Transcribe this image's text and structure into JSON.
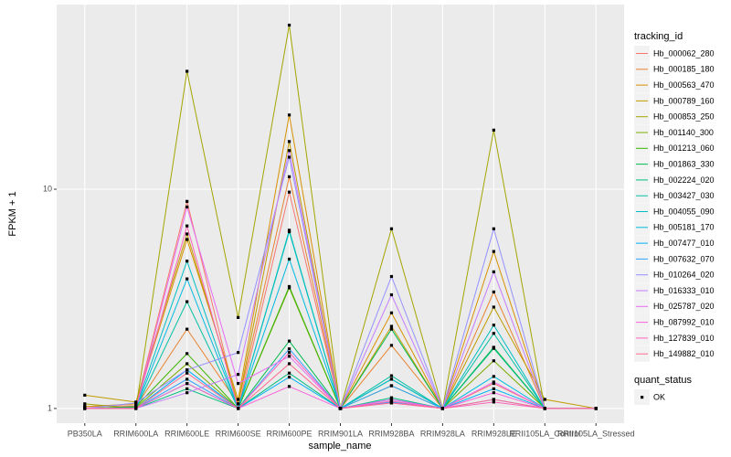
{
  "chart_data": {
    "type": "line",
    "x_label": "sample_name",
    "y_label": "FPKM + 1",
    "categories": [
      "PB350LA",
      "RRIM600LA",
      "RRIM600LE",
      "RRIM600SE",
      "RRIM600PE",
      "RRIM901LA",
      "RRIM928BA",
      "RRIM928LA",
      "RRIM928LE",
      "RRII105LA_Control",
      "RRII105LA_Stressed"
    ],
    "ylim": [
      0.857,
      69.5
    ],
    "yticks": [
      1,
      10
    ],
    "log_y": true,
    "grid": true,
    "legend_title": "tracking_id",
    "legend_position": "right",
    "shape_legend": {
      "title": "quant_status",
      "labels": [
        "OK"
      ]
    },
    "point_color": "#000000",
    "series": [
      {
        "name": "Hb_000062_280",
        "color": "#F8766D",
        "values": [
          1.02,
          1.03,
          8.8,
          1.0,
          9.7,
          1.0,
          1.1,
          1.0,
          1.3,
          1.0,
          1.0
        ]
      },
      {
        "name": "Hb_000185_180",
        "color": "#EA8331",
        "values": [
          1.0,
          1.02,
          2.3,
          1.05,
          11.4,
          1.0,
          1.94,
          1.0,
          3.4,
          1.0,
          1.0
        ]
      },
      {
        "name": "Hb_000563_470",
        "color": "#D89000",
        "values": [
          1.02,
          1.05,
          5.9,
          1.1,
          21.8,
          1.0,
          2.73,
          1.0,
          5.2,
          1.0,
          1.0
        ]
      },
      {
        "name": "Hb_000789_160",
        "color": "#C09B00",
        "values": [
          1.15,
          1.07,
          6.25,
          1.05,
          16.5,
          1.0,
          2.37,
          1.0,
          2.9,
          1.1,
          1.0
        ]
      },
      {
        "name": "Hb_000853_250",
        "color": "#A3A500",
        "values": [
          1.05,
          1.0,
          34.5,
          2.6,
          56,
          1.0,
          6.6,
          1.0,
          18.6,
          1.0,
          1.0
        ]
      },
      {
        "name": "Hb_001140_300",
        "color": "#7CAE00",
        "values": [
          1.0,
          1.01,
          1.6,
          1.0,
          3.55,
          1.0,
          1.27,
          1.0,
          1.65,
          1.0,
          1.0
        ]
      },
      {
        "name": "Hb_001213_060",
        "color": "#39B600",
        "values": [
          1.0,
          1.02,
          1.78,
          1.0,
          3.6,
          1.0,
          1.36,
          1.0,
          1.9,
          1.0,
          1.0
        ]
      },
      {
        "name": "Hb_001863_330",
        "color": "#00BB4E",
        "values": [
          1.0,
          1.0,
          1.3,
          1.0,
          2.03,
          1.0,
          2.3,
          1.0,
          1.9,
          1.0,
          1.0
        ]
      },
      {
        "name": "Hb_002224_020",
        "color": "#00BF7D",
        "values": [
          1.0,
          1.0,
          1.23,
          1.0,
          1.45,
          1.0,
          1.12,
          1.0,
          1.88,
          1.0,
          1.0
        ]
      },
      {
        "name": "Hb_003427_030",
        "color": "#00C1A3",
        "values": [
          1.0,
          1.0,
          3.07,
          1.0,
          6.5,
          1.0,
          1.41,
          1.0,
          2.2,
          1.0,
          1.0
        ]
      },
      {
        "name": "Hb_004055_090",
        "color": "#00BFC4",
        "values": [
          1.0,
          1.01,
          4.7,
          1.0,
          6.4,
          1.0,
          1.1,
          1.0,
          2.4,
          1.0,
          1.0
        ]
      },
      {
        "name": "Hb_005181_170",
        "color": "#00BAE0",
        "values": [
          1.0,
          1.0,
          3.9,
          1.0,
          4.8,
          1.0,
          1.36,
          1.0,
          1.4,
          1.0,
          1.0
        ]
      },
      {
        "name": "Hb_007477_010",
        "color": "#00B0F6",
        "values": [
          1.0,
          1.0,
          1.5,
          1.0,
          1.39,
          1.0,
          1.07,
          1.0,
          1.23,
          1.0,
          1.0
        ]
      },
      {
        "name": "Hb_007632_070",
        "color": "#35A2FF",
        "values": [
          1.0,
          1.0,
          1.36,
          1.0,
          1.87,
          1.0,
          1.27,
          1.0,
          1.1,
          1.0,
          1.0
        ]
      },
      {
        "name": "Hb_010264_020",
        "color": "#9590FF",
        "values": [
          1.0,
          1.06,
          1.5,
          1.8,
          14,
          1.0,
          4.0,
          1.0,
          6.6,
          1.0,
          1.0
        ]
      },
      {
        "name": "Hb_016333_010",
        "color": "#C77CFF",
        "values": [
          1.0,
          1.0,
          1.18,
          1.43,
          15,
          1.0,
          3.3,
          1.0,
          4.2,
          1.0,
          1.0
        ]
      },
      {
        "name": "Hb_025787_020",
        "color": "#E76BF3",
        "values": [
          1.0,
          1.0,
          8.3,
          1.3,
          1.73,
          1.0,
          1.1,
          1.0,
          1.32,
          1.0,
          1.0
        ]
      },
      {
        "name": "Hb_087992_010",
        "color": "#FA62DB",
        "values": [
          1.0,
          1.0,
          1.3,
          1.0,
          1.26,
          1.0,
          1.06,
          1.0,
          1.18,
          1.0,
          1.0
        ]
      },
      {
        "name": "Hb_127839_010",
        "color": "#FF62BC",
        "values": [
          1.0,
          1.0,
          6.8,
          1.0,
          1.8,
          1.0,
          1.08,
          1.0,
          1.07,
          1.0,
          1.0
        ]
      },
      {
        "name": "Hb_149882_010",
        "color": "#FF6C91",
        "values": [
          1.0,
          1.0,
          1.45,
          1.0,
          1.6,
          1.0,
          1.06,
          1.0,
          1.1,
          1.0,
          1.0
        ]
      }
    ]
  }
}
